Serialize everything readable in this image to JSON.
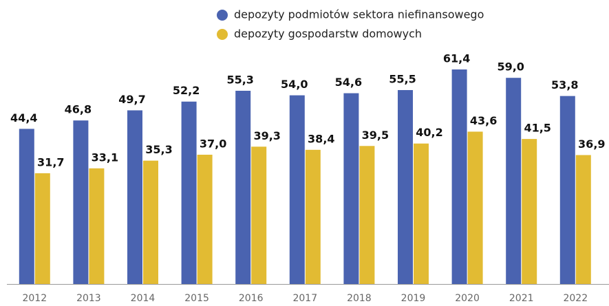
{
  "chart_data": {
    "type": "bar",
    "categories": [
      "2012",
      "2013",
      "2014",
      "2015",
      "2016",
      "2017",
      "2018",
      "2019",
      "2020",
      "2021",
      "2022"
    ],
    "series": [
      {
        "name": "depozyty podmiotów sektora niefinansowego",
        "color": "#4a63b0",
        "values": [
          44.4,
          46.8,
          49.7,
          52.2,
          55.3,
          54.0,
          54.6,
          55.5,
          61.4,
          59.0,
          53.8
        ],
        "value_labels": [
          "44,4",
          "46,8",
          "49,7",
          "52,2",
          "55,3",
          "54,0",
          "54,6",
          "55,5",
          "61,4",
          "59,0",
          "53,8"
        ]
      },
      {
        "name": "depozyty gospodarstw domowych",
        "color": "#e2bb33",
        "values": [
          31.7,
          33.1,
          35.3,
          37.0,
          39.3,
          38.4,
          39.5,
          40.2,
          43.6,
          41.5,
          36.9
        ],
        "value_labels": [
          "31,7",
          "33,1",
          "35,3",
          "37,0",
          "39,3",
          "38,4",
          "39,5",
          "40,2",
          "43,6",
          "41,5",
          "36,9"
        ]
      }
    ],
    "legend": "top"
  }
}
